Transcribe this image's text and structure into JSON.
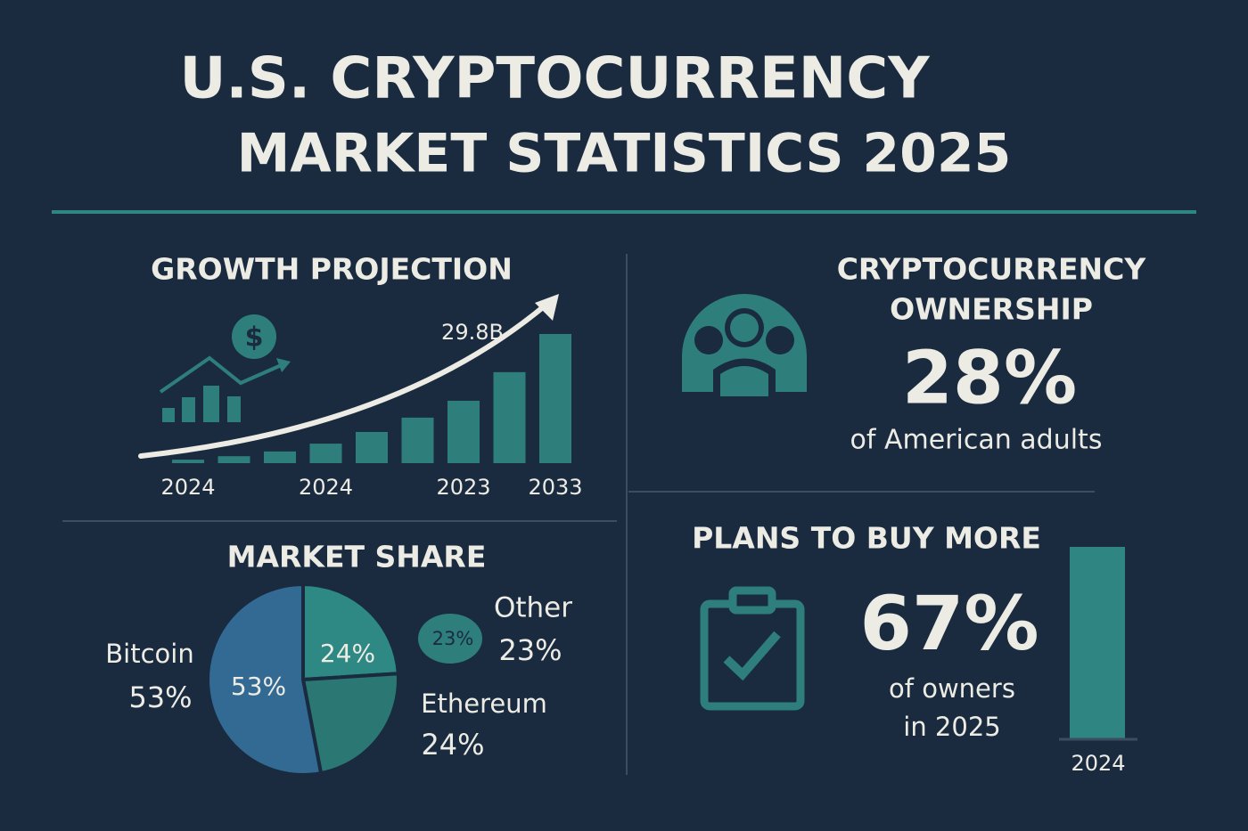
{
  "header": {
    "title_lines": [
      "U.S. CRYPTOCURRENCY",
      "MARKET STATISTICS 2025"
    ]
  },
  "growth": {
    "title": "GROWTH PROJECTION",
    "annotation": "29.8B",
    "categories": [
      "2024",
      null,
      null,
      "2024",
      null,
      null,
      "2023",
      null,
      "2033"
    ],
    "values": [
      0.8,
      1.6,
      2.7,
      4.5,
      7.2,
      10.5,
      14.4,
      21,
      29.8
    ],
    "ylim": [
      0,
      29.8
    ],
    "color": "#2e7f7c"
  },
  "ownership": {
    "title_lines": [
      "CRYPTOCURRENCY",
      "OWNERSHIP"
    ],
    "stat": "28%",
    "caption": "of American adults"
  },
  "market_share": {
    "title": "MARKET SHARE",
    "categories": [
      "Bitcoin",
      "Ethereum",
      "Other"
    ],
    "values": [
      53,
      24,
      23
    ],
    "value_labels": [
      "53%",
      "24%",
      "23%"
    ],
    "colors": [
      "#336a93",
      "#2e8884",
      "#2a7773"
    ]
  },
  "plans": {
    "title": "PLANS TO BUY MORE",
    "stat": "67%",
    "caption_lines": [
      "of owners",
      "in 2025"
    ],
    "bar_label": "2024"
  }
}
